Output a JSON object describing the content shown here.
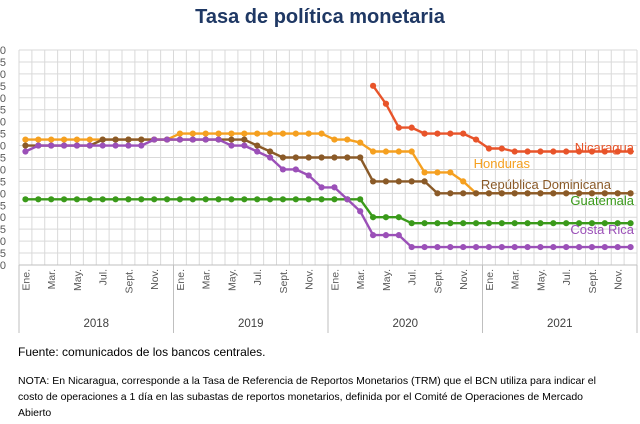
{
  "title": "Tasa de política monetaria",
  "source": "Fuente: comunicados de los bancos centrales.",
  "nota": "NOTA: En Nicaragua, corresponde a la Tasa de Referencia de Reportos Monetarios (TRM) que el BCN utiliza para indicar el costo de operaciones a 1 día en las subastas de reportos monetarios, definida por el Comité de Operaciones de Mercado Abierto",
  "chart_data": {
    "type": "line",
    "x": [
      "2018-01",
      "2018-02",
      "2018-03",
      "2018-04",
      "2018-05",
      "2018-06",
      "2018-07",
      "2018-08",
      "2018-09",
      "2018-10",
      "2018-11",
      "2018-12",
      "2019-01",
      "2019-02",
      "2019-03",
      "2019-04",
      "2019-05",
      "2019-06",
      "2019-07",
      "2019-08",
      "2019-09",
      "2019-10",
      "2019-11",
      "2019-12",
      "2020-01",
      "2020-02",
      "2020-03",
      "2020-04",
      "2020-05",
      "2020-06",
      "2020-07",
      "2020-08",
      "2020-09",
      "2020-10",
      "2020-11",
      "2020-12",
      "2021-01",
      "2021-02",
      "2021-03",
      "2021-04",
      "2021-05",
      "2021-06",
      "2021-07",
      "2021-08",
      "2021-09",
      "2021-10",
      "2021-11",
      "2021-12"
    ],
    "month_labels": [
      "Ene.",
      "Mar.",
      "May.",
      "Jul.",
      "Sept.",
      "Nov."
    ],
    "years": [
      "2018",
      "2019",
      "2020",
      "2021"
    ],
    "y_tick_labels": [
      "0",
      "5",
      "0",
      "5",
      "0",
      "5",
      "0",
      "5",
      "0",
      "5",
      "0",
      "5",
      "0",
      "5",
      "0",
      "5",
      "0",
      "5",
      "0"
    ],
    "grid": true,
    "series": [
      {
        "name": "Nicaragua",
        "color": "#e8542a",
        "values": [
          null,
          null,
          null,
          null,
          null,
          null,
          null,
          null,
          null,
          null,
          null,
          null,
          null,
          null,
          null,
          null,
          null,
          null,
          null,
          null,
          null,
          null,
          null,
          null,
          null,
          null,
          null,
          7.5,
          6.75,
          5.75,
          5.75,
          5.5,
          5.5,
          5.5,
          5.5,
          5.25,
          4.875,
          4.875,
          4.75,
          4.75,
          4.75,
          4.75,
          4.75,
          4.75,
          4.75,
          4.75,
          4.75,
          4.75
        ]
      },
      {
        "name": "Honduras",
        "color": "#f5a020",
        "values": [
          5.25,
          5.25,
          5.25,
          5.25,
          5.25,
          5.25,
          5.25,
          5.25,
          5.25,
          5.25,
          5.25,
          5.25,
          5.5,
          5.5,
          5.5,
          5.5,
          5.5,
          5.5,
          5.5,
          5.5,
          5.5,
          5.5,
          5.5,
          5.5,
          5.25,
          5.25,
          5.125,
          4.75,
          4.75,
          4.75,
          4.75,
          3.875,
          3.875,
          3.875,
          3.5,
          3.0,
          3.0,
          3.0,
          3.0,
          3.0,
          3.0,
          3.0,
          3.0,
          3.0,
          3.0,
          3.0,
          3.0,
          3.0
        ]
      },
      {
        "name": "República Dominicana",
        "color": "#8a5a28",
        "values": [
          5.0,
          5.0,
          5.0,
          5.0,
          5.0,
          5.0,
          5.25,
          5.25,
          5.25,
          5.25,
          5.25,
          5.25,
          5.25,
          5.25,
          5.25,
          5.25,
          5.25,
          5.25,
          5.0,
          4.75,
          4.5,
          4.5,
          4.5,
          4.5,
          4.5,
          4.5,
          4.5,
          3.5,
          3.5,
          3.5,
          3.5,
          3.5,
          3.0,
          3.0,
          3.0,
          3.0,
          3.0,
          3.0,
          3.0,
          3.0,
          3.0,
          3.0,
          3.0,
          3.0,
          3.0,
          3.0,
          3.0,
          3.0
        ]
      },
      {
        "name": "Guatemala",
        "color": "#3a9a1a",
        "values": [
          2.75,
          2.75,
          2.75,
          2.75,
          2.75,
          2.75,
          2.75,
          2.75,
          2.75,
          2.75,
          2.75,
          2.75,
          2.75,
          2.75,
          2.75,
          2.75,
          2.75,
          2.75,
          2.75,
          2.75,
          2.75,
          2.75,
          2.75,
          2.75,
          2.75,
          2.75,
          2.75,
          2.0,
          2.0,
          2.0,
          1.75,
          1.75,
          1.75,
          1.75,
          1.75,
          1.75,
          1.75,
          1.75,
          1.75,
          1.75,
          1.75,
          1.75,
          1.75,
          1.75,
          1.75,
          1.75,
          1.75,
          1.75
        ]
      },
      {
        "name": "Costa Rica",
        "color": "#9b50b8",
        "values": [
          4.75,
          5.0,
          5.0,
          5.0,
          5.0,
          5.0,
          5.0,
          5.0,
          5.0,
          5.0,
          5.25,
          5.25,
          5.25,
          5.25,
          5.25,
          5.25,
          5.0,
          5.0,
          4.75,
          4.5,
          4.0,
          4.0,
          3.75,
          3.25,
          3.25,
          2.75,
          2.25,
          1.25,
          1.25,
          1.25,
          0.75,
          0.75,
          0.75,
          0.75,
          0.75,
          0.75,
          0.75,
          0.75,
          0.75,
          0.75,
          0.75,
          0.75,
          0.75,
          0.75,
          0.75,
          0.75,
          0.75,
          0.75
        ]
      }
    ]
  }
}
